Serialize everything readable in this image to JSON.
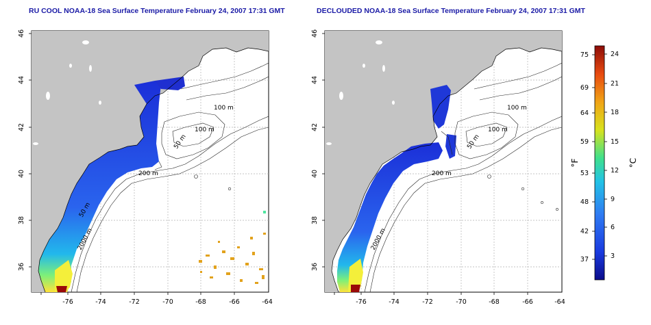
{
  "left_panel": {
    "title": "RU COOL NOAA-18 Sea Surface Temperature February 24, 2007 17:31 GMT",
    "contour_labels": [
      "100 m",
      "100 m",
      "50 m",
      "200 m",
      "50 m",
      "2000 m"
    ]
  },
  "right_panel": {
    "title": "DECLOUDED NOAA-18 Sea Surface Temperature February 24, 2007 17:31 GMT",
    "contour_labels": [
      "100 m",
      "100 m",
      "50 m",
      "200 m",
      "2000 m"
    ]
  },
  "axes": {
    "x_ticks": [
      "-76",
      "-74",
      "-72",
      "-70",
      "-68",
      "-66",
      "-64"
    ],
    "y_ticks": [
      "36",
      "38",
      "40",
      "42",
      "44",
      "46"
    ]
  },
  "colorbar": {
    "unit_f": "°F",
    "unit_c": "°C",
    "f_ticks": [
      "75",
      "69",
      "64",
      "59",
      "53",
      "48",
      "42",
      "37"
    ],
    "c_ticks": [
      "24",
      "21",
      "18",
      "15",
      "12",
      "9",
      "6",
      "3"
    ],
    "colors": [
      "#0b0c8a",
      "#1a3be0",
      "#2f7bf2",
      "#22c2e6",
      "#3fe08c",
      "#d8e21e",
      "#f0a416",
      "#e84a10",
      "#8c0c08"
    ]
  }
}
